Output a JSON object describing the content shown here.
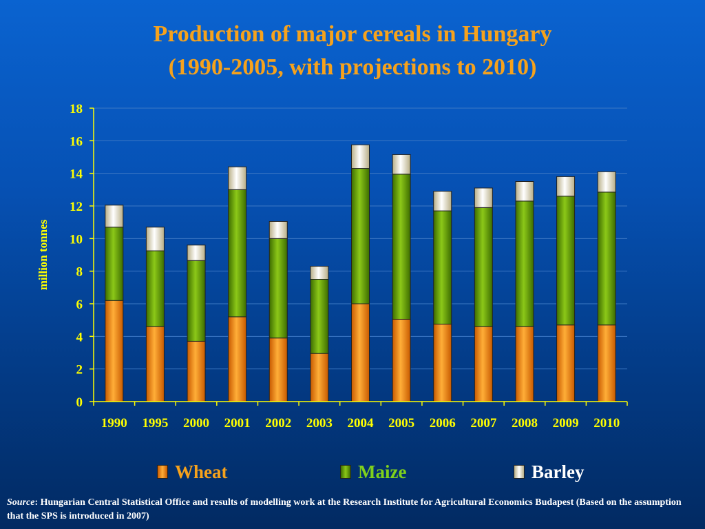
{
  "chart_data": {
    "type": "bar",
    "stacked": true,
    "title": "Production of major cereals in Hungary",
    "subtitle": "(1990-2005, with projections to 2010)",
    "ylabel": "million tonnes",
    "xlabel": "",
    "ylim": [
      0,
      18
    ],
    "yticks": [
      "0",
      "2",
      "4",
      "6",
      "8",
      "10",
      "12",
      "14",
      "16",
      "18"
    ],
    "grid": true,
    "legend_position": "bottom",
    "categories": [
      "1990",
      "1995",
      "2000",
      "2001",
      "2002",
      "2003",
      "2004",
      "2005",
      "2006",
      "2007",
      "2008",
      "2009",
      "2010"
    ],
    "series": [
      {
        "name": "Wheat",
        "color": "#f08a0c",
        "values": [
          6.2,
          4.6,
          3.7,
          5.2,
          3.9,
          2.95,
          6.0,
          5.05,
          4.75,
          4.6,
          4.6,
          4.7,
          4.7
        ]
      },
      {
        "name": "Maize",
        "color": "#5e9a0a",
        "values": [
          4.5,
          4.65,
          4.95,
          7.8,
          6.1,
          4.55,
          8.3,
          8.9,
          6.95,
          7.3,
          7.7,
          7.9,
          8.15
        ]
      },
      {
        "name": "Barley",
        "color": "#f2eccd",
        "values": [
          1.35,
          1.45,
          0.95,
          1.4,
          1.05,
          0.8,
          1.45,
          1.2,
          1.2,
          1.2,
          1.2,
          1.2,
          1.25
        ]
      }
    ]
  },
  "source": {
    "label": "Source",
    "text": ": Hungarian Central Statistical Office and results of modelling work at the Research Institute for Agricultural Economics Budapest (Based on the assumption that the SPS is introduced in 2007)"
  },
  "colors": {
    "title": "#f6a21c",
    "axis": "#ffff00",
    "tick_label": "#ffff00",
    "gridline": "#3d78c4"
  }
}
